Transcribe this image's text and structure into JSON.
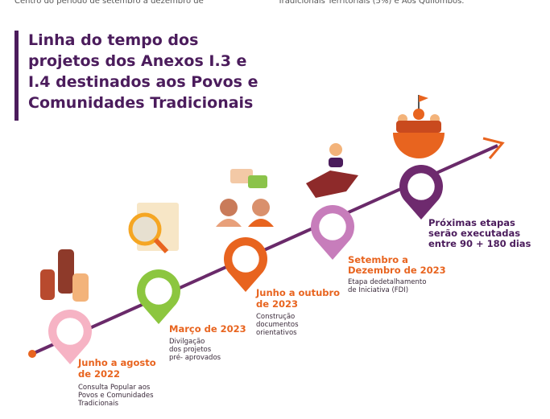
{
  "header": {
    "lines": [
      "Centro do período de setembro a dezembro de",
      "Tradicionais Territoriais (5%) e Aos Quilombos."
    ]
  },
  "title": [
    "Linha do tempo dos",
    "projetos dos Anexos I.3 e",
    "I.4 destinados aos Povos e",
    "Comunidades Tradicionais"
  ],
  "milestones": [
    {
      "date": [
        "Junho a agosto",
        "de 2022"
      ],
      "description": [
        "Consulta Popular aos",
        "Povos e Comunidades",
        "Tradicionais"
      ]
    },
    {
      "date": [
        "Março de 2023"
      ],
      "description": [
        "Divilgação",
        "dos projetos",
        "pré- aprovados"
      ]
    },
    {
      "date": [
        "Junho a outubro",
        "de 2023"
      ],
      "description": [
        "Construção",
        "documentos",
        "orientativos"
      ]
    },
    {
      "date": [
        "Setembro a",
        "Dezembro de 2023"
      ],
      "description": [
        "Etapa dedetalhamento",
        "de Iniciativa (FDI)"
      ]
    }
  ],
  "next": [
    "Próximas etapas",
    "serão executadas",
    "entre 90 + 180 dias"
  ]
}
